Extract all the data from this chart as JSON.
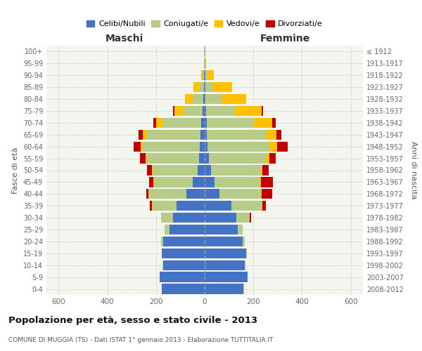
{
  "age_groups": [
    "0-4",
    "5-9",
    "10-14",
    "15-19",
    "20-24",
    "25-29",
    "30-34",
    "35-39",
    "40-44",
    "45-49",
    "50-54",
    "55-59",
    "60-64",
    "65-69",
    "70-74",
    "75-79",
    "80-84",
    "85-89",
    "90-94",
    "95-99",
    "100+"
  ],
  "birth_years": [
    "2008-2012",
    "2003-2007",
    "1998-2002",
    "1993-1997",
    "1988-1992",
    "1983-1987",
    "1978-1982",
    "1973-1977",
    "1968-1972",
    "1963-1967",
    "1958-1962",
    "1953-1957",
    "1948-1952",
    "1943-1947",
    "1938-1942",
    "1933-1937",
    "1928-1932",
    "1923-1927",
    "1918-1922",
    "1913-1917",
    "≤ 1912"
  ],
  "male": {
    "celibinubili": [
      175,
      185,
      170,
      175,
      170,
      145,
      130,
      115,
      75,
      48,
      30,
      22,
      20,
      18,
      14,
      8,
      5,
      3,
      2,
      1,
      1
    ],
    "coniugati": [
      1,
      1,
      2,
      2,
      10,
      20,
      50,
      100,
      155,
      160,
      185,
      215,
      235,
      220,
      160,
      80,
      45,
      18,
      8,
      2,
      1
    ],
    "vedovi": [
      0,
      0,
      0,
      0,
      0,
      0,
      0,
      1,
      1,
      2,
      3,
      6,
      8,
      15,
      25,
      35,
      30,
      25,
      5,
      1,
      0
    ],
    "divorziati": [
      0,
      0,
      0,
      0,
      0,
      0,
      0,
      8,
      10,
      18,
      20,
      22,
      28,
      18,
      12,
      8,
      2,
      0,
      0,
      0,
      0
    ]
  },
  "female": {
    "celibinubili": [
      160,
      175,
      165,
      170,
      155,
      135,
      130,
      110,
      60,
      40,
      25,
      16,
      12,
      10,
      8,
      5,
      4,
      3,
      2,
      1,
      1
    ],
    "coniugate": [
      1,
      1,
      2,
      2,
      10,
      20,
      55,
      125,
      170,
      185,
      205,
      235,
      255,
      240,
      195,
      120,
      65,
      30,
      10,
      2,
      1
    ],
    "vedove": [
      0,
      0,
      0,
      0,
      0,
      0,
      0,
      2,
      3,
      5,
      8,
      15,
      30,
      45,
      75,
      110,
      100,
      80,
      25,
      3,
      0
    ],
    "divorziate": [
      0,
      0,
      0,
      0,
      0,
      0,
      5,
      15,
      45,
      50,
      25,
      25,
      45,
      20,
      15,
      5,
      2,
      0,
      0,
      0,
      0
    ]
  },
  "colors": {
    "celibinubili": "#4472c4",
    "coniugati": "#b8cc8a",
    "vedovi": "#ffc000",
    "divorziati": "#c00000"
  },
  "title": "Popolazione per età, sesso e stato civile - 2013",
  "subtitle": "COMUNE DI MUGGIA (TS) - Dati ISTAT 1° gennaio 2013 - Elaborazione TUTTITALIA.IT",
  "xlabel_left": "Maschi",
  "xlabel_right": "Femmine",
  "ylabel_left": "Fasce di età",
  "ylabel_right": "Anni di nascita",
  "legend_labels": [
    "Celibi/Nubili",
    "Coniugati/e",
    "Vedovi/e",
    "Divorziati/e"
  ],
  "xlim": 650,
  "background_color": "#ffffff",
  "plot_bg": "#f5f5f0",
  "grid_color": "#cccccc"
}
